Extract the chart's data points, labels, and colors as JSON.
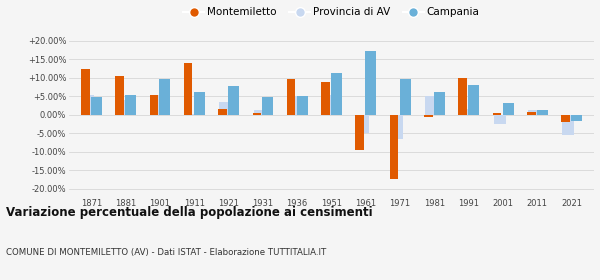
{
  "years": [
    1871,
    1881,
    1901,
    1911,
    1921,
    1931,
    1936,
    1951,
    1961,
    1971,
    1981,
    1991,
    2001,
    2011,
    2021
  ],
  "montemiletto": [
    12.5,
    10.5,
    5.3,
    14.0,
    1.5,
    0.5,
    9.8,
    9.0,
    -9.5,
    -17.5,
    -0.5,
    10.0,
    0.5,
    0.8,
    -2.0
  ],
  "provincia_av": [
    5.5,
    4.0,
    5.3,
    0.3,
    3.5,
    1.2,
    5.2,
    5.5,
    -4.8,
    -6.5,
    5.0,
    1.5,
    -2.5,
    1.2,
    -5.5
  ],
  "campania": [
    4.8,
    5.3,
    9.8,
    6.3,
    7.7,
    4.8,
    5.2,
    11.2,
    17.3,
    9.6,
    6.1,
    8.0,
    3.1,
    1.4,
    -1.8
  ],
  "color_montemiletto": "#e05a00",
  "color_provincia": "#c8d8f0",
  "color_campania": "#6ab0d8",
  "title": "Variazione percentuale della popolazione ai censimenti",
  "subtitle": "COMUNE DI MONTEMILETTO (AV) - Dati ISTAT - Elaborazione TUTTITALIA.IT",
  "ytick_vals": [
    -20,
    -15,
    -10,
    -5,
    0,
    5,
    10,
    15,
    20
  ],
  "ytick_labels": [
    "-20.00%",
    "-15.00%",
    "-10.00%",
    "-5.00%",
    "0.00%",
    "+5.00%",
    "+10.00%",
    "+15.00%",
    "+20.00%"
  ],
  "ylim": [
    -22,
    22
  ],
  "bg_color": "#f5f5f5",
  "legend_labels": [
    "Montemiletto",
    "Provincia di AV",
    "Campania"
  ]
}
